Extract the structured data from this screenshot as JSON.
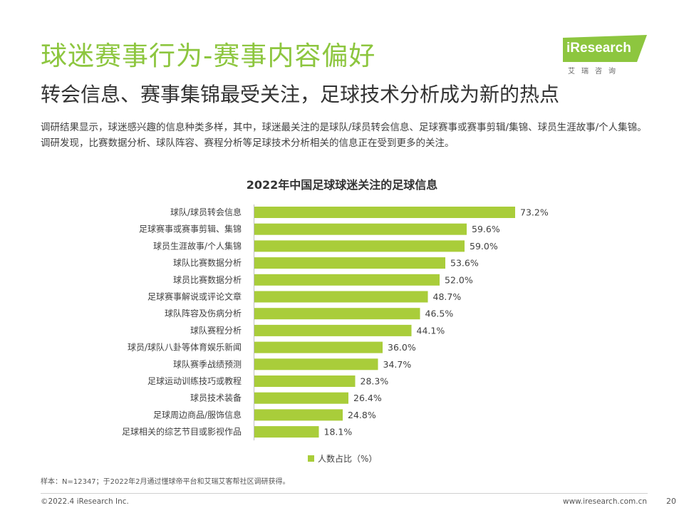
{
  "header": {
    "title": "球迷赛事行为-赛事内容偏好",
    "subtitle": "转会信息、赛事集锦最受关注，足球技术分析成为新的热点",
    "description": "调研结果显示，球迷感兴趣的信息种类多样，其中，球迷最关注的是球队/球员转会信息、足球赛事或赛事剪辑/集锦、球员生涯故事/个人集锦。调研发现，比赛数据分析、球队阵容、赛程分析等足球技术分析相关的信息正在受到更多的关注。"
  },
  "logo": {
    "name": "iResearch",
    "sub": "艾瑞咨询"
  },
  "colors": {
    "accent": "#8dc63f",
    "bar": "#a9cd3a"
  },
  "chart_data": {
    "type": "bar",
    "orientation": "horizontal",
    "title": "2022年中国足球球迷关注的足球信息",
    "categories": [
      "球队/球员转会信息",
      "足球赛事或赛事剪辑、集锦",
      "球员生涯故事/个人集锦",
      "球队比赛数据分析",
      "球员比赛数据分析",
      "足球赛事解说或评论文章",
      "球队阵容及伤病分析",
      "球队赛程分析",
      "球员/球队八卦等体育娱乐新闻",
      "球队赛季战绩预测",
      "足球运动训练技巧或教程",
      "球员技术装备",
      "足球周边商品/服饰信息",
      "足球相关的综艺节目或影视作品"
    ],
    "values": [
      73.2,
      59.6,
      59.0,
      53.6,
      52.0,
      48.7,
      46.5,
      44.1,
      36.0,
      34.7,
      28.3,
      26.4,
      24.8,
      18.1
    ],
    "value_labels": [
      "73.2%",
      "59.6%",
      "59.0%",
      "53.6%",
      "52.0%",
      "48.7%",
      "46.5%",
      "44.1%",
      "36.0%",
      "34.7%",
      "28.3%",
      "26.4%",
      "24.8%",
      "18.1%"
    ],
    "series_name": "人数占比（%）",
    "xlim": [
      0,
      80
    ],
    "legend_position": "bottom"
  },
  "footnote": {
    "source": "样本：N=12347；于2022年2月通过懂球帝平台和艾瑞艾客帮社区调研获得。"
  },
  "footer": {
    "copyright": "©2022.4 iResearch Inc.",
    "website": "www.iresearch.com.cn",
    "page": "20"
  }
}
